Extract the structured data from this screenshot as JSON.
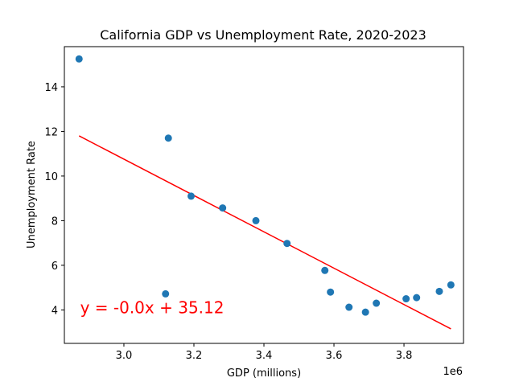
{
  "chart_data": {
    "type": "scatter",
    "title": "California GDP vs Unemployment Rate, 2020-2023",
    "xlabel": "GDP (millions)",
    "ylabel": "Unemployment Rate",
    "x_offset_label": "1e6",
    "xlim": [
      2.83,
      3.97
    ],
    "ylim": [
      2.5,
      15.8
    ],
    "x_ticks": [
      3.0,
      3.2,
      3.4,
      3.6,
      3.8
    ],
    "x_tick_labels": [
      "3.0",
      "3.2",
      "3.4",
      "3.6",
      "3.8"
    ],
    "y_ticks": [
      4,
      6,
      8,
      10,
      12,
      14
    ],
    "y_tick_labels": [
      "4",
      "6",
      "8",
      "10",
      "12",
      "14"
    ],
    "grid": false,
    "x_scale": "1e6",
    "points": [
      {
        "x": 2.872,
        "y": 15.25
      },
      {
        "x": 3.127,
        "y": 11.7
      },
      {
        "x": 3.192,
        "y": 9.1
      },
      {
        "x": 3.282,
        "y": 8.57
      },
      {
        "x": 3.377,
        "y": 8.0
      },
      {
        "x": 3.466,
        "y": 6.98
      },
      {
        "x": 3.574,
        "y": 5.77
      },
      {
        "x": 3.119,
        "y": 4.72
      },
      {
        "x": 3.59,
        "y": 4.8
      },
      {
        "x": 3.643,
        "y": 4.12
      },
      {
        "x": 3.69,
        "y": 3.9
      },
      {
        "x": 3.721,
        "y": 4.3
      },
      {
        "x": 3.806,
        "y": 4.5
      },
      {
        "x": 3.836,
        "y": 4.55
      },
      {
        "x": 3.901,
        "y": 4.83
      },
      {
        "x": 3.934,
        "y": 5.12
      }
    ],
    "point_color": "#1f77b4",
    "fit_line": {
      "x": [
        2.872,
        3.934
      ],
      "y": [
        11.8,
        3.15
      ],
      "color": "#ff0000"
    },
    "annotation": {
      "text": "y = -0.0x + 35.12",
      "x": 2.875,
      "y": 3.85,
      "color": "#ff0000"
    }
  }
}
